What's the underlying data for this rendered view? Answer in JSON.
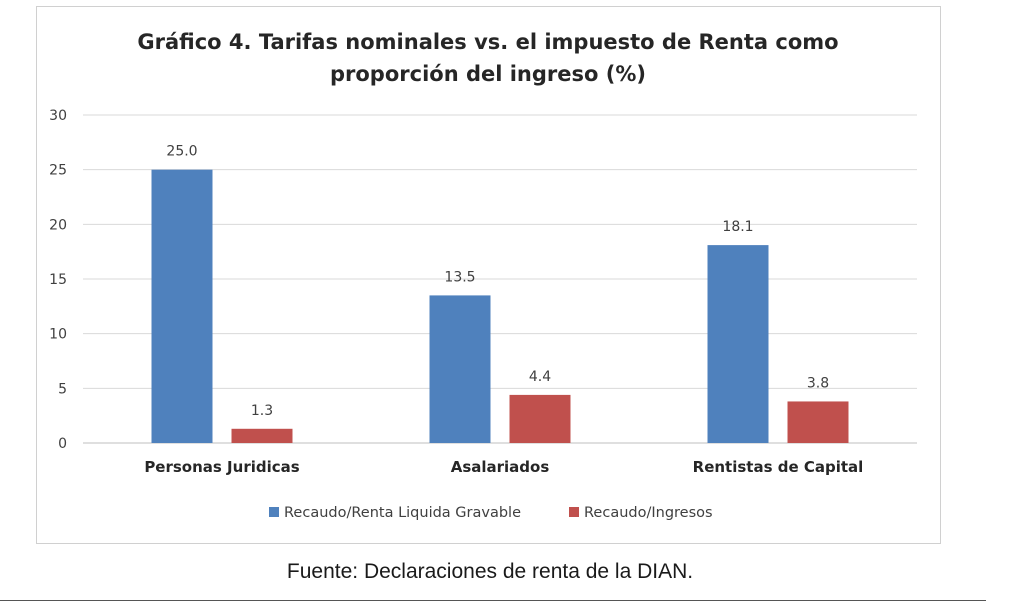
{
  "chart_data": {
    "type": "bar",
    "title": [
      "Gráfico 4. Tarifas nominales vs. el impuesto de Renta como",
      "proporción del ingreso (%)"
    ],
    "categories": [
      "Personas Juridicas",
      "Asalariados",
      "Rentistas de Capital"
    ],
    "series": [
      {
        "name": "Recaudo/Renta Liquida Gravable",
        "values": [
          25.0,
          13.5,
          18.1
        ],
        "labels": [
          "25.0",
          "13.5",
          "18.1"
        ],
        "color": "#4F81BD"
      },
      {
        "name": "Recaudo/Ingresos",
        "values": [
          1.3,
          4.4,
          3.8
        ],
        "labels": [
          "1.3",
          "4.4",
          "3.8"
        ],
        "color": "#C0504D"
      }
    ],
    "yticks": [
      "0",
      "5",
      "10",
      "15",
      "20",
      "25",
      "30"
    ],
    "ylim": [
      0,
      30
    ],
    "grid": true,
    "legend": "bottom"
  },
  "source": "Fuente: Declaraciones de renta de la DIAN."
}
